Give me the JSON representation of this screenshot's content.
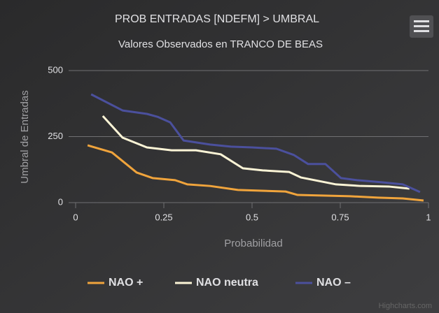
{
  "chart_data": {
    "type": "line",
    "title": "PROB ENTRADAS [NDEFM] > UMBRAL",
    "subtitle": "Valores Observados en TRANCO DE BEAS",
    "xlabel": "Probabilidad",
    "ylabel": "Umbral de Entradas",
    "credits": "Highcharts.com",
    "xlim": [
      0,
      1
    ],
    "xticks": [
      0,
      0.25,
      0.5,
      0.75,
      1
    ],
    "ylim": [
      0,
      500
    ],
    "yticks": [
      0,
      250,
      500
    ],
    "grid": true,
    "legend": "bottom",
    "series": [
      {
        "name": "NAO +",
        "color": "#f0a43c",
        "x": [
          0.034,
          0.103,
          0.173,
          0.218,
          0.282,
          0.317,
          0.381,
          0.46,
          0.595,
          0.629,
          0.778,
          0.857,
          0.927,
          0.986
        ],
        "values": [
          217,
          190,
          114,
          93,
          85,
          69,
          63,
          48,
          42,
          29,
          24,
          19,
          16,
          8
        ]
      },
      {
        "name": "NAO neutra",
        "color": "#fbf4d6",
        "x": [
          0.077,
          0.133,
          0.202,
          0.272,
          0.341,
          0.411,
          0.474,
          0.53,
          0.605,
          0.639,
          0.738,
          0.808,
          0.887,
          0.946
        ],
        "values": [
          328,
          246,
          209,
          198,
          198,
          183,
          130,
          122,
          116,
          95,
          69,
          63,
          61,
          53
        ]
      },
      {
        "name": "NAO –",
        "color": "#4b509d",
        "x": [
          0.044,
          0.133,
          0.202,
          0.232,
          0.268,
          0.306,
          0.381,
          0.44,
          0.5,
          0.569,
          0.619,
          0.659,
          0.708,
          0.752,
          0.798,
          0.867,
          0.927,
          0.976
        ],
        "values": [
          410,
          349,
          336,
          325,
          304,
          235,
          220,
          212,
          209,
          204,
          180,
          146,
          146,
          93,
          85,
          77,
          69,
          40
        ]
      }
    ]
  }
}
